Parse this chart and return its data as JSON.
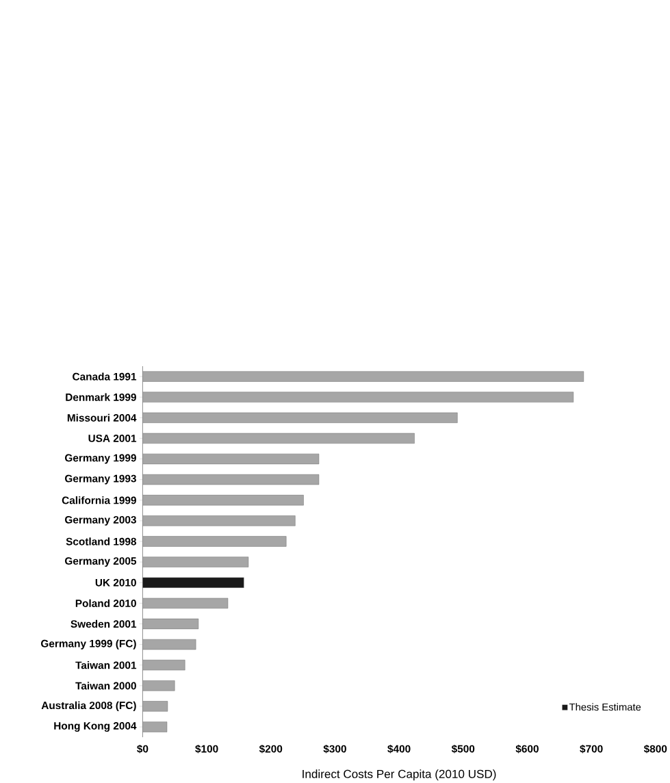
{
  "chart_data": {
    "type": "bar",
    "orientation": "horizontal",
    "xlabel": "Indirect Costs Per Capita (2010  USD)",
    "categories": [
      "Canada 1991",
      "Denmark 1999",
      "Missouri 2004",
      "USA 2001",
      "Germany 1999",
      "Germany 1993",
      "California 1999",
      "Germany 2003",
      "Scotland 1998",
      "Germany 2005",
      "UK 2010",
      "Poland 2010",
      "Sweden 2001",
      "Germany 1999 (FC)",
      "Taiwan 2001",
      "Taiwan 2000",
      "Australia 2008 (FC)",
      "Hong Kong 2004"
    ],
    "series": [
      {
        "color": "#a6a6a6",
        "values": [
          688,
          672,
          491,
          424,
          275,
          275,
          251,
          238,
          224,
          165,
          null,
          133,
          87,
          83,
          66,
          50,
          39,
          38
        ]
      },
      {
        "name": "Thesis Estimate",
        "color": "#1a1a1a",
        "values": [
          null,
          null,
          null,
          null,
          null,
          null,
          null,
          null,
          null,
          null,
          158,
          null,
          null,
          null,
          null,
          null,
          null,
          null
        ]
      }
    ],
    "xlim": [
      0,
      800
    ],
    "xticks": [
      {
        "value": 0,
        "label": "$0"
      },
      {
        "value": 100,
        "label": "$100"
      },
      {
        "value": 200,
        "label": "$200"
      },
      {
        "value": 300,
        "label": "$300"
      },
      {
        "value": 400,
        "label": "$400"
      },
      {
        "value": 500,
        "label": "$500"
      },
      {
        "value": 600,
        "label": "$600"
      },
      {
        "value": 700,
        "label": "$700"
      },
      {
        "value": 800,
        "label": "$800"
      }
    ],
    "legend": "bottom right",
    "grid": false
  }
}
